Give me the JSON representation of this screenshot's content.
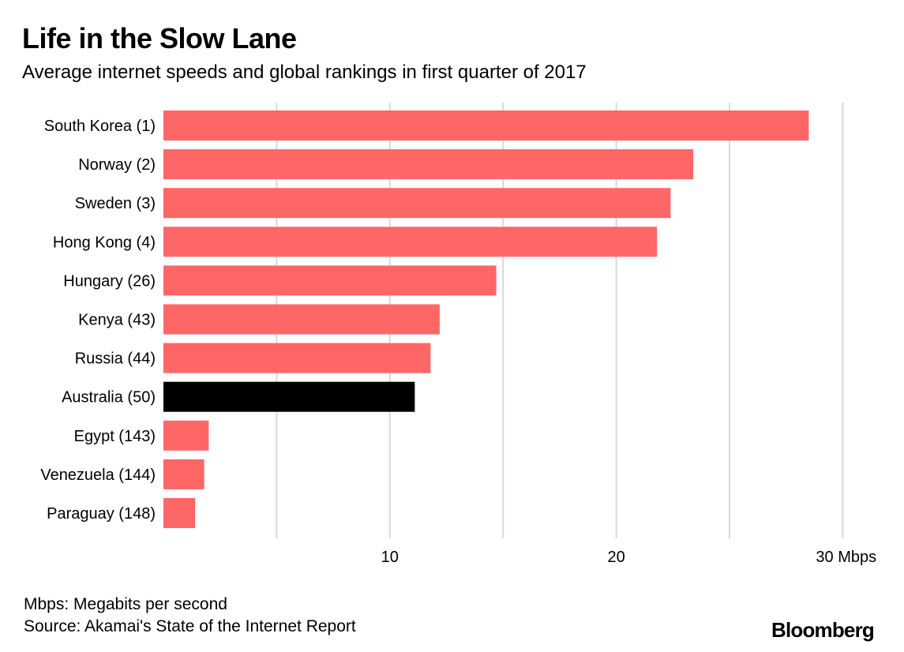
{
  "chart_data": {
    "type": "bar",
    "orientation": "horizontal",
    "title": "Life in the Slow Lane",
    "subtitle": "Average internet speeds and global rankings in first quarter of 2017",
    "categories": [
      "South Korea (1)",
      "Norway (2)",
      "Sweden (3)",
      "Hong Kong (4)",
      "Hungary (26)",
      "Kenya (43)",
      "Russia (44)",
      "Australia (50)",
      "Egypt (143)",
      "Venezuela (144)",
      "Paraguay (148)"
    ],
    "values": [
      28.5,
      23.4,
      22.4,
      21.8,
      14.7,
      12.2,
      11.8,
      11.1,
      2.0,
      1.8,
      1.4
    ],
    "highlight": "Australia (50)",
    "colors": {
      "default": "#ff6666",
      "highlight": "#000000",
      "grid": "#d9d9d9"
    },
    "xlim": [
      0,
      31
    ],
    "major_ticks": [
      10,
      20,
      30
    ],
    "minor_gridlines": [
      5,
      15,
      25
    ],
    "tick_labels": [
      "10",
      "20",
      "30 Mbps"
    ],
    "xlabel": "Mbps",
    "grid": true
  },
  "notes": {
    "definition": "Mbps: Megabits per second",
    "source": "Source: Akamai's State of the Internet Report"
  },
  "brand": "Bloomberg"
}
